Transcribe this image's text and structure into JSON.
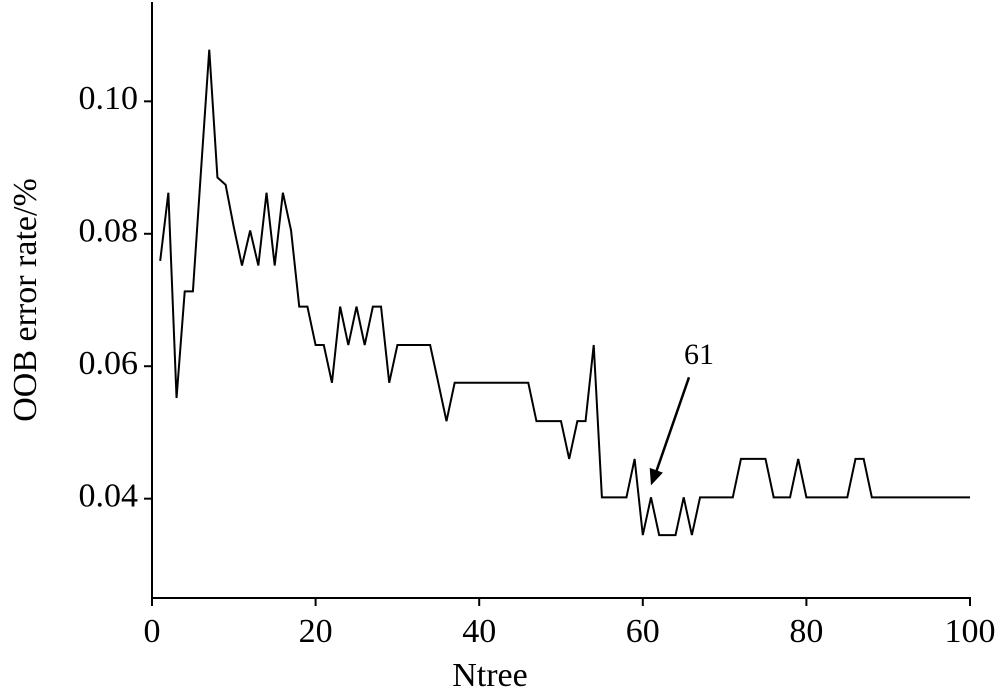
{
  "chart_data": {
    "type": "line",
    "x_label": "Ntree",
    "y_label": "OOB error rate/%",
    "x": [
      1,
      2,
      3,
      4,
      5,
      6,
      7,
      8,
      9,
      10,
      11,
      12,
      13,
      14,
      15,
      16,
      17,
      18,
      19,
      20,
      21,
      22,
      23,
      24,
      25,
      26,
      27,
      28,
      29,
      30,
      31,
      32,
      33,
      34,
      35,
      36,
      37,
      38,
      39,
      40,
      41,
      42,
      43,
      44,
      45,
      46,
      47,
      48,
      49,
      50,
      51,
      52,
      53,
      54,
      55,
      56,
      57,
      58,
      59,
      60,
      61,
      62,
      63,
      64,
      65,
      66,
      67,
      68,
      69,
      70,
      71,
      72,
      73,
      74,
      75,
      76,
      77,
      78,
      79,
      80,
      81,
      82,
      83,
      84,
      85,
      86,
      87,
      88,
      89,
      90,
      91,
      92,
      93,
      94,
      95,
      96,
      97,
      98,
      99,
      100
    ],
    "values": [
      0.0759,
      0.0862,
      0.0552,
      0.0713,
      0.0713,
      0.0897,
      0.1078,
      0.0885,
      0.0874,
      0.081,
      0.0752,
      0.0805,
      0.0752,
      0.0862,
      0.0752,
      0.0862,
      0.0805,
      0.069,
      0.069,
      0.0632,
      0.0632,
      0.0575,
      0.069,
      0.0632,
      0.069,
      0.0632,
      0.069,
      0.069,
      0.0575,
      0.0632,
      0.0632,
      0.0632,
      0.0632,
      0.0632,
      0.0575,
      0.0517,
      0.0575,
      0.0575,
      0.0575,
      0.0575,
      0.0575,
      0.0575,
      0.0575,
      0.0575,
      0.0575,
      0.0575,
      0.0517,
      0.0517,
      0.0517,
      0.0517,
      0.046,
      0.0517,
      0.0517,
      0.0632,
      0.0402,
      0.0402,
      0.0402,
      0.0402,
      0.046,
      0.0345,
      0.0402,
      0.0345,
      0.0345,
      0.0345,
      0.0402,
      0.0345,
      0.0402,
      0.0402,
      0.0402,
      0.0402,
      0.0402,
      0.046,
      0.046,
      0.046,
      0.046,
      0.0402,
      0.0402,
      0.0402,
      0.046,
      0.0402,
      0.0402,
      0.0402,
      0.0402,
      0.0402,
      0.0402,
      0.046,
      0.046,
      0.0402,
      0.0402,
      0.0402,
      0.0402,
      0.0402,
      0.0402,
      0.0402,
      0.0402,
      0.0402,
      0.0402,
      0.0402,
      0.0402,
      0.0402
    ],
    "color": "#000000",
    "xlim": [
      0,
      100
    ],
    "ylim": [
      0.025,
      0.115
    ],
    "xticks": [
      0,
      20,
      40,
      60,
      80,
      100
    ],
    "yticks": [
      0.04,
      0.06,
      0.08,
      {
        "value": 0.1,
        "label": "0.10"
      }
    ],
    "grid": false,
    "annotation": {
      "text": "61",
      "x": 61
    }
  }
}
